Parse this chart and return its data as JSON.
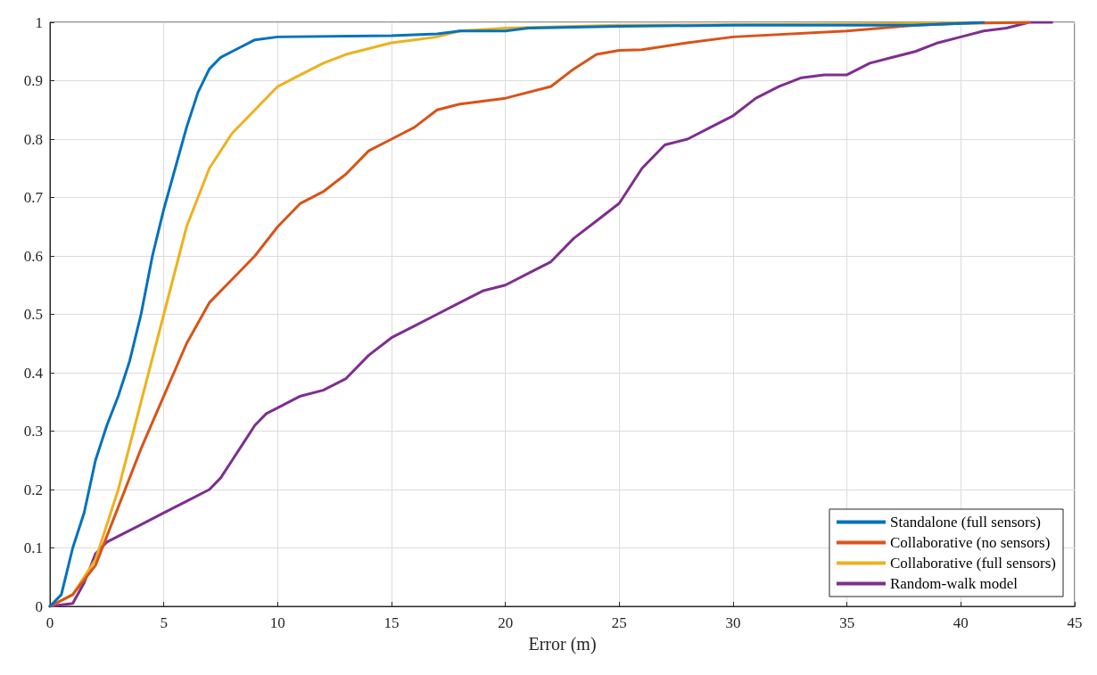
{
  "chart_data": {
    "type": "line",
    "xlabel": "Error (m)",
    "xlim": [
      0,
      45
    ],
    "xticks": [
      0,
      5,
      10,
      15,
      20,
      25,
      30,
      35,
      40,
      45
    ],
    "ylim": [
      0,
      1
    ],
    "yticks": [
      0,
      0.1,
      0.2,
      0.3,
      0.4,
      0.5,
      0.6,
      0.7,
      0.8,
      0.9,
      1
    ],
    "grid": true,
    "legend": "bottom right",
    "marker": "none",
    "line_style": "solid",
    "series": [
      {
        "name": "Standalone (full sensors)",
        "color": "#0072bd",
        "x": [
          0,
          0.5,
          1,
          1.5,
          2,
          2.5,
          3,
          3.5,
          4,
          4.5,
          5,
          5.5,
          6,
          6.5,
          7,
          7.5,
          8,
          9,
          10,
          15,
          17,
          18,
          20,
          21,
          25,
          30,
          38,
          40,
          41
        ],
        "values": [
          0,
          0.02,
          0.1,
          0.16,
          0.25,
          0.31,
          0.36,
          0.42,
          0.5,
          0.6,
          0.68,
          0.75,
          0.82,
          0.88,
          0.92,
          0.94,
          0.95,
          0.97,
          0.975,
          0.977,
          0.98,
          0.985,
          0.985,
          0.99,
          0.993,
          0.995,
          0.995,
          0.998,
          1
        ]
      },
      {
        "name": "Collaborative (no sensors)",
        "color": "#d95319",
        "x": [
          0,
          1,
          2,
          3,
          4,
          5,
          6,
          7,
          8,
          9,
          10,
          11,
          12,
          13,
          14,
          15,
          16,
          17,
          18,
          20,
          22,
          23,
          24,
          25,
          26,
          28,
          30,
          35,
          38,
          40,
          43
        ],
        "values": [
          0,
          0.02,
          0.07,
          0.17,
          0.27,
          0.36,
          0.45,
          0.52,
          0.56,
          0.6,
          0.65,
          0.69,
          0.71,
          0.74,
          0.78,
          0.8,
          0.82,
          0.85,
          0.86,
          0.87,
          0.89,
          0.92,
          0.945,
          0.952,
          0.953,
          0.965,
          0.975,
          0.985,
          0.995,
          0.998,
          1
        ]
      },
      {
        "name": "Collaborative (full sensors)",
        "color": "#edb120",
        "x": [
          0,
          1,
          2,
          3,
          4,
          5,
          6,
          7,
          8,
          9,
          10,
          11,
          12,
          13,
          14,
          15,
          16,
          17,
          18,
          20,
          25,
          35,
          40,
          43
        ],
        "values": [
          0,
          0.02,
          0.08,
          0.2,
          0.35,
          0.5,
          0.65,
          0.75,
          0.81,
          0.85,
          0.89,
          0.91,
          0.93,
          0.945,
          0.955,
          0.965,
          0.97,
          0.975,
          0.985,
          0.99,
          0.995,
          0.997,
          0.999,
          1
        ]
      },
      {
        "name": "Random-walk model",
        "color": "#7e2f8e",
        "x": [
          0,
          1,
          1.5,
          2,
          2.5,
          3,
          4,
          5,
          6,
          7,
          7.5,
          8,
          8.5,
          9,
          9.5,
          10,
          11,
          12,
          13,
          14,
          15,
          16,
          17,
          18,
          19,
          20,
          21,
          22,
          23,
          24,
          25,
          26,
          27,
          28,
          29,
          30,
          31,
          32,
          33,
          34,
          35,
          36,
          37,
          38,
          39,
          40,
          41,
          42,
          43,
          44
        ],
        "values": [
          0,
          0.005,
          0.04,
          0.09,
          0.11,
          0.12,
          0.14,
          0.16,
          0.18,
          0.2,
          0.22,
          0.25,
          0.28,
          0.31,
          0.33,
          0.34,
          0.36,
          0.37,
          0.39,
          0.43,
          0.46,
          0.48,
          0.5,
          0.52,
          0.54,
          0.55,
          0.57,
          0.59,
          0.63,
          0.66,
          0.69,
          0.75,
          0.79,
          0.8,
          0.82,
          0.84,
          0.87,
          0.89,
          0.905,
          0.91,
          0.91,
          0.93,
          0.94,
          0.95,
          0.965,
          0.975,
          0.985,
          0.99,
          1,
          1
        ]
      }
    ]
  }
}
